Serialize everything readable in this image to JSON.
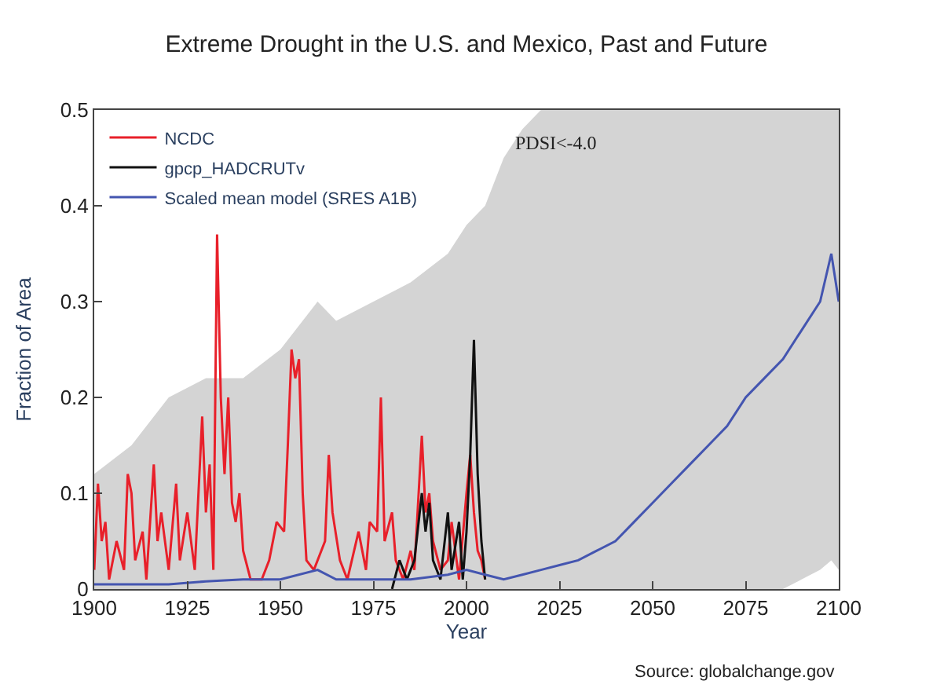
{
  "chart_data": {
    "type": "line",
    "title": "Extreme Drought in the U.S. and Mexico, Past and Future",
    "xlabel": "Year",
    "ylabel": "Fraction of Area",
    "xlim": [
      1900,
      2100
    ],
    "xticks": [
      1900,
      1925,
      1950,
      1975,
      2000,
      2025,
      2050,
      2075,
      2100
    ],
    "ylim": [
      0,
      0.5
    ],
    "yticks": [
      0,
      0.1,
      0.2,
      0.3,
      0.4,
      0.5
    ],
    "legend": "top left",
    "marker": "none",
    "line_style": "solid",
    "annotations": [
      "PDSI<-4.0",
      "Source: globalchange.gov"
    ],
    "series": [
      {
        "name": "NCDC",
        "color": "#e8202a",
        "x": [
          1900,
          1901,
          1902,
          1903,
          1904,
          1906,
          1908,
          1909,
          1910,
          1911,
          1913,
          1914,
          1916,
          1917,
          1918,
          1920,
          1922,
          1923,
          1925,
          1927,
          1929,
          1930,
          1931,
          1932,
          1933,
          1934,
          1935,
          1936,
          1937,
          1938,
          1939,
          1940,
          1942,
          1945,
          1947,
          1949,
          1951,
          1952,
          1953,
          1954,
          1955,
          1956,
          1957,
          1959,
          1962,
          1963,
          1964,
          1966,
          1968,
          1971,
          1973,
          1974,
          1976,
          1977,
          1978,
          1980,
          1981,
          1983,
          1985,
          1986,
          1988,
          1989,
          1990,
          1991,
          1993,
          1995,
          1996,
          1998,
          2000,
          2001,
          2002,
          2003,
          2004,
          2005
        ],
        "values": [
          0.02,
          0.11,
          0.05,
          0.07,
          0.01,
          0.05,
          0.02,
          0.12,
          0.1,
          0.03,
          0.06,
          0.01,
          0.13,
          0.05,
          0.08,
          0.02,
          0.11,
          0.03,
          0.08,
          0.02,
          0.18,
          0.08,
          0.13,
          0.02,
          0.37,
          0.2,
          0.12,
          0.2,
          0.09,
          0.07,
          0.1,
          0.04,
          0.01,
          0.01,
          0.03,
          0.07,
          0.06,
          0.15,
          0.25,
          0.22,
          0.24,
          0.1,
          0.03,
          0.02,
          0.05,
          0.14,
          0.08,
          0.03,
          0.01,
          0.06,
          0.02,
          0.07,
          0.06,
          0.2,
          0.05,
          0.08,
          0.03,
          0.01,
          0.04,
          0.02,
          0.16,
          0.08,
          0.1,
          0.05,
          0.02,
          0.03,
          0.07,
          0.01,
          0.1,
          0.14,
          0.08,
          0.04,
          0.03,
          0.01
        ]
      },
      {
        "name": "gpcp_HADCRUTv",
        "color": "#111111",
        "x": [
          1980,
          1982,
          1984,
          1986,
          1988,
          1989,
          1990,
          1991,
          1993,
          1995,
          1996,
          1998,
          1999,
          2000,
          2001,
          2002,
          2003,
          2004,
          2005
        ],
        "values": [
          0.0,
          0.03,
          0.01,
          0.03,
          0.1,
          0.06,
          0.09,
          0.03,
          0.01,
          0.08,
          0.02,
          0.07,
          0.01,
          0.06,
          0.14,
          0.26,
          0.12,
          0.05,
          0.01
        ]
      },
      {
        "name": "Scaled mean model (SRES A1B)",
        "color": "#4455b0",
        "x": [
          1900,
          1910,
          1920,
          1930,
          1940,
          1950,
          1960,
          1965,
          1975,
          1985,
          1995,
          2000,
          2005,
          2010,
          2015,
          2020,
          2025,
          2030,
          2035,
          2040,
          2045,
          2050,
          2055,
          2060,
          2065,
          2070,
          2075,
          2080,
          2085,
          2090,
          2095,
          2098,
          2100
        ],
        "values": [
          0.005,
          0.005,
          0.005,
          0.008,
          0.01,
          0.01,
          0.02,
          0.01,
          0.01,
          0.01,
          0.015,
          0.02,
          0.015,
          0.01,
          0.015,
          0.02,
          0.025,
          0.03,
          0.04,
          0.05,
          0.07,
          0.09,
          0.11,
          0.13,
          0.15,
          0.17,
          0.2,
          0.22,
          0.24,
          0.27,
          0.3,
          0.35,
          0.3
        ],
        "lower": [
          0,
          0,
          0,
          0,
          0,
          0,
          0,
          0,
          0,
          0,
          0,
          0,
          0,
          0,
          0,
          0,
          0,
          0,
          0,
          0,
          0,
          0,
          0,
          0,
          0,
          0,
          0,
          0,
          0,
          0.01,
          0.02,
          0.03,
          0.02
        ],
        "upper": [
          0.12,
          0.15,
          0.2,
          0.22,
          0.22,
          0.25,
          0.3,
          0.28,
          0.3,
          0.32,
          0.35,
          0.38,
          0.4,
          0.45,
          0.48,
          0.5,
          0.5,
          0.5,
          0.5,
          0.5,
          0.5,
          0.5,
          0.5,
          0.5,
          0.5,
          0.5,
          0.5,
          0.5,
          0.5,
          0.5,
          0.5,
          0.5,
          0.5
        ]
      }
    ]
  }
}
